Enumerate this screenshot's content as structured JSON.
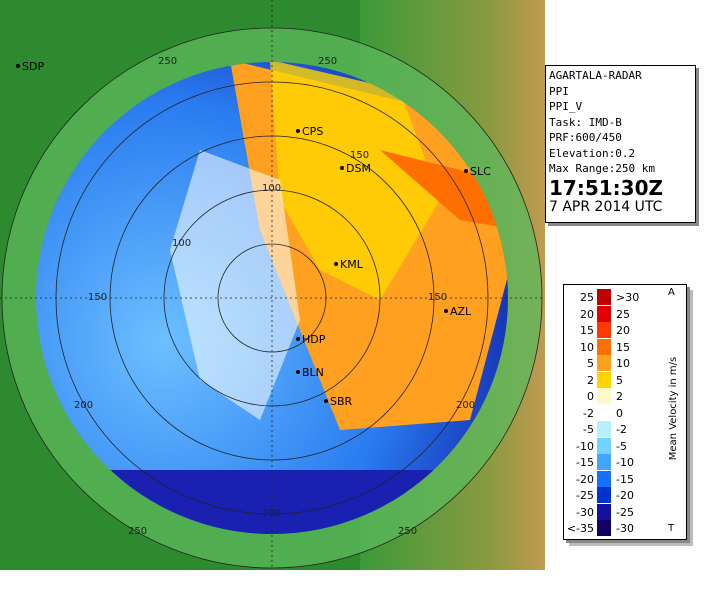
{
  "info": {
    "lines": [
      "AGARTALA-RADAR",
      "PPI",
      "PPI_V",
      "Task: IMD-B",
      "PRF:600/450",
      "Elevation:0.2",
      "Max Range:250 km"
    ],
    "time": "17:51:30Z",
    "date": "7 APR 2014 UTC"
  },
  "legend": {
    "title": "Mean Velocity in m/s",
    "top_mark": "A",
    "bottom_mark": "T",
    "rows": [
      {
        "left": "25",
        "right": ">30",
        "color": "#c00000"
      },
      {
        "left": "20",
        "right": "25",
        "color": "#e40000"
      },
      {
        "left": "15",
        "right": "20",
        "color": "#ff3a00"
      },
      {
        "left": "10",
        "right": "15",
        "color": "#ff6e00"
      },
      {
        "left": "5",
        "right": "10",
        "color": "#ffa020"
      },
      {
        "left": "2",
        "right": "5",
        "color": "#ffd400"
      },
      {
        "left": "0",
        "right": "2",
        "color": "#fff8c8"
      },
      {
        "left": "-2",
        "right": "0",
        "color": "#ffffff"
      },
      {
        "left": "-5",
        "right": "-2",
        "color": "#b4f0ff"
      },
      {
        "left": "-10",
        "right": "-5",
        "color": "#74d2ff"
      },
      {
        "left": "-15",
        "right": "-10",
        "color": "#40a6ff"
      },
      {
        "left": "-20",
        "right": "-15",
        "color": "#1470ff"
      },
      {
        "left": "-25",
        "right": "-20",
        "color": "#0034d0"
      },
      {
        "left": "-30",
        "right": "-25",
        "color": "#1410a0"
      },
      {
        "left": "<-35",
        "right": "-30",
        "color": "#140064"
      }
    ]
  },
  "map": {
    "stations": [
      "SDP",
      "CPS",
      "DSM",
      "SLC",
      "KML",
      "AZL",
      "HDP",
      "BLN",
      "SBR"
    ],
    "range_labels": [
      "250",
      "250",
      "100",
      "150",
      "100",
      "150",
      "150",
      "200",
      "200",
      "200",
      "250",
      "250"
    ]
  }
}
